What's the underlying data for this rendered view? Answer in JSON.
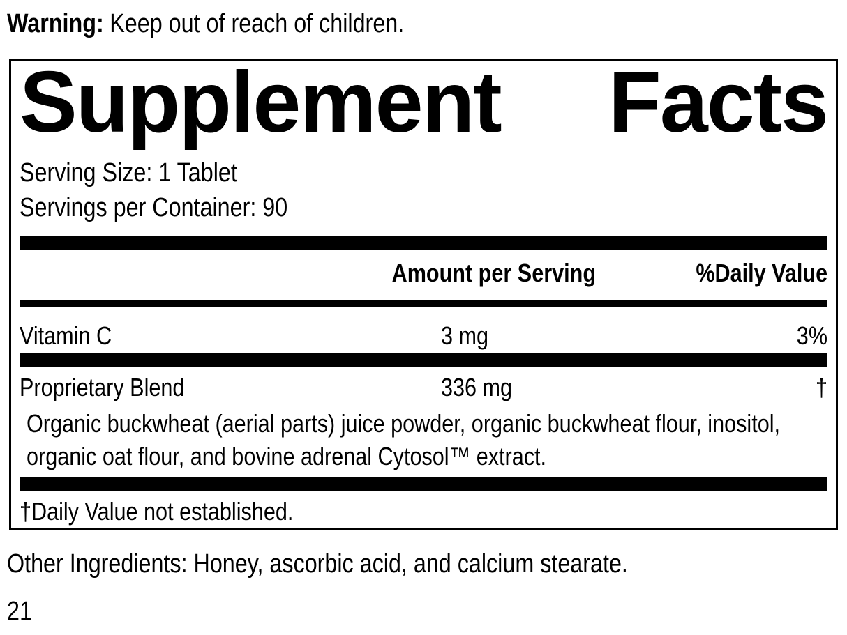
{
  "colors": {
    "text": "#000000",
    "background": "#ffffff"
  },
  "warning": {
    "label": "Warning:",
    "text": "Keep out of reach of children."
  },
  "panel": {
    "title": "Supplement Facts",
    "serving_size": "Serving Size: 1 Tablet",
    "servings_per_container": "Servings per Container: 90",
    "columns": {
      "amount": "Amount per Serving",
      "daily_value": "%Daily Value"
    },
    "rows": [
      {
        "name": "Vitamin C",
        "amount": "3 mg",
        "dv": "3%"
      },
      {
        "name": "Proprietary Blend",
        "amount": "336 mg",
        "dv": "†",
        "description": "Organic buckwheat (aerial parts) juice powder, organic buckwheat flour, inositol, organic oat flour, and bovine adrenal Cytosol™ extract."
      }
    ],
    "footnote": "†Daily Value not established."
  },
  "other_ingredients": "Other Ingredients: Honey, ascorbic acid, and calcium stearate.",
  "page_number": "21"
}
